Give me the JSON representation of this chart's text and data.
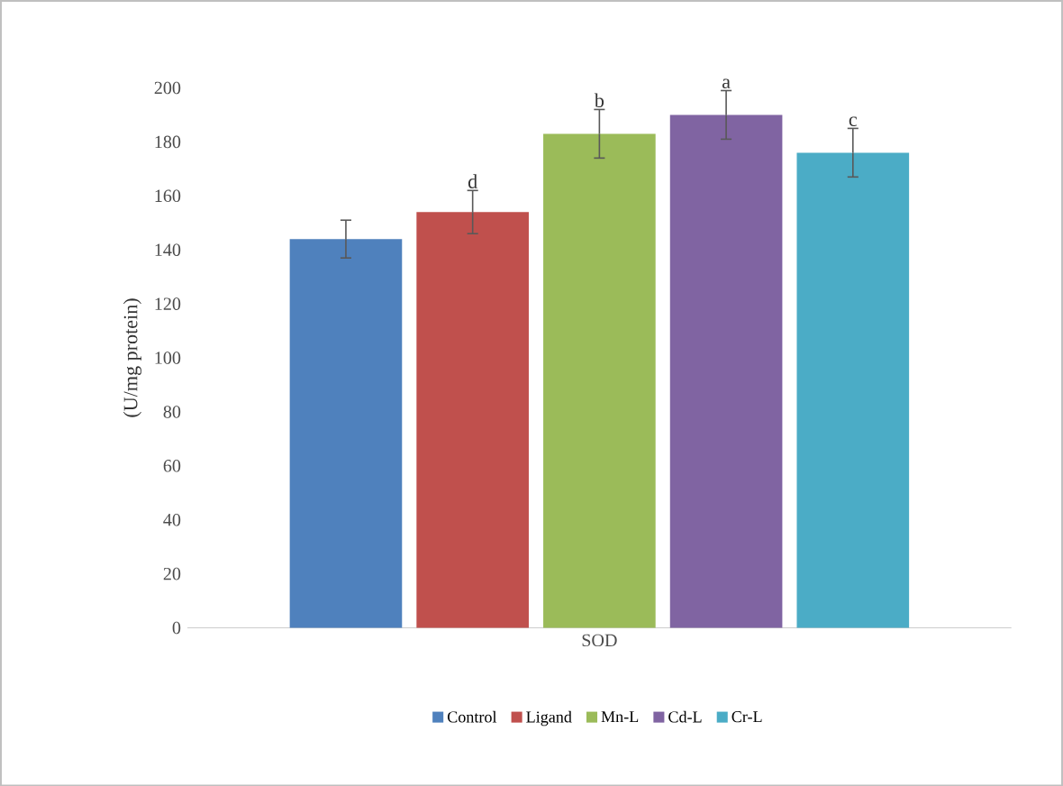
{
  "chart_data": {
    "type": "bar",
    "ylabel": "(U/mg protein)",
    "categories": [
      "SOD"
    ],
    "ylim": [
      0,
      200
    ],
    "yticks": [
      0,
      20,
      40,
      60,
      80,
      100,
      120,
      140,
      160,
      180,
      200
    ],
    "grid": false,
    "legend": "bottom",
    "series": [
      {
        "name": "Control",
        "color": "#4f81bd",
        "values": [
          144
        ],
        "errors": [
          7
        ],
        "value_labels": [
          null
        ]
      },
      {
        "name": "Ligand",
        "color": "#c0504d",
        "values": [
          154
        ],
        "errors": [
          8
        ],
        "value_labels": [
          "d"
        ]
      },
      {
        "name": "Mn-L",
        "color": "#9bbb59",
        "values": [
          183
        ],
        "errors": [
          9
        ],
        "value_labels": [
          "b"
        ]
      },
      {
        "name": "Cd-L",
        "color": "#8064a2",
        "values": [
          190
        ],
        "errors": [
          9
        ],
        "value_labels": [
          "a"
        ]
      },
      {
        "name": "Cr-L",
        "color": "#4bacc6",
        "values": [
          176
        ],
        "errors": [
          9
        ],
        "value_labels": [
          "c"
        ]
      }
    ]
  }
}
